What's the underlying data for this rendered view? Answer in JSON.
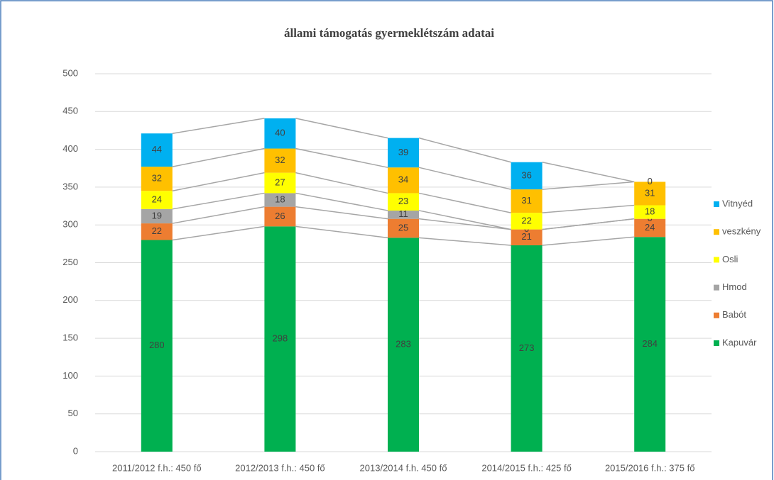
{
  "chart_data": {
    "type": "bar",
    "stacked": true,
    "title": "állami támogatás gyermeklétszám adatai",
    "categories": [
      "2011/2012 f.h.: 450 fő",
      "2012/2013 f.h.: 450 fő",
      "2013/2014 f.h. 450 fő",
      "2014/2015 f.h.: 425 fő",
      "2015/2016 f.h.: 375 fő"
    ],
    "series": [
      {
        "name": "Kapuvár",
        "color": "#00b050",
        "values": [
          280,
          298,
          283,
          273,
          284
        ]
      },
      {
        "name": "Babót",
        "color": "#ed7d31",
        "values": [
          22,
          26,
          25,
          21,
          24
        ]
      },
      {
        "name": "Hmod",
        "color": "#a5a5a5",
        "values": [
          19,
          18,
          11,
          0,
          0
        ]
      },
      {
        "name": "Osli",
        "color": "#ffff00",
        "values": [
          24,
          27,
          23,
          22,
          18
        ]
      },
      {
        "name": "veszkény",
        "color": "#ffc000",
        "values": [
          32,
          32,
          34,
          31,
          31
        ]
      },
      {
        "name": "Vitnyéd",
        "color": "#00b0f0",
        "values": [
          44,
          40,
          39,
          36,
          0
        ]
      }
    ],
    "ylim": [
      0,
      500
    ],
    "yticks": [
      0,
      50,
      100,
      150,
      200,
      250,
      300,
      350,
      400,
      450,
      500
    ],
    "grid": true,
    "series_lines": true,
    "legend": "right"
  }
}
